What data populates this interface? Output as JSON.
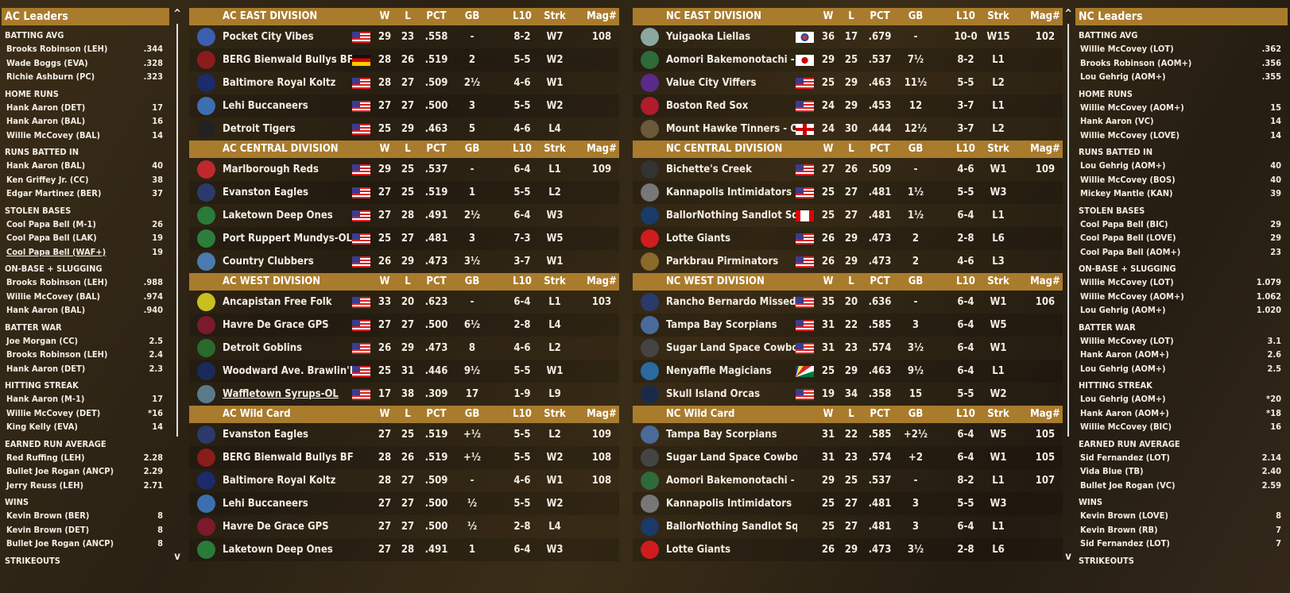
{
  "colors": {
    "header": "#a97b2c",
    "background": "#2a2114"
  },
  "columns": [
    "W",
    "L",
    "PCT",
    "GB",
    "L10",
    "Strk",
    "Mag#"
  ],
  "ac_leaders": {
    "title": "AC Leaders",
    "categories": [
      {
        "name": "BATTING AVG",
        "items": [
          [
            "Brooks Robinson (LEH)",
            ".344"
          ],
          [
            "Wade Boggs (EVA)",
            ".328"
          ],
          [
            "Richie Ashburn (PC)",
            ".323"
          ]
        ]
      },
      {
        "name": "HOME RUNS",
        "items": [
          [
            "Hank Aaron (DET)",
            "17"
          ],
          [
            "Hank Aaron (BAL)",
            "16"
          ],
          [
            "Willie McCovey (BAL)",
            "14"
          ]
        ]
      },
      {
        "name": "RUNS BATTED IN",
        "items": [
          [
            "Hank Aaron (BAL)",
            "40"
          ],
          [
            "Ken Griffey Jr. (CC)",
            "38"
          ],
          [
            "Edgar Martinez (BER)",
            "37"
          ]
        ]
      },
      {
        "name": "STOLEN BASES",
        "items": [
          [
            "Cool Papa Bell (M-1)",
            "26"
          ],
          [
            "Cool Papa Bell (LAK)",
            "19"
          ],
          [
            "Cool Papa Bell (WAF+)",
            "19"
          ]
        ]
      },
      {
        "name": "ON-BASE + SLUGGING",
        "items": [
          [
            "Brooks Robinson (LEH)",
            ".988"
          ],
          [
            "Willie McCovey (BAL)",
            ".974"
          ],
          [
            "Hank Aaron (BAL)",
            ".940"
          ]
        ]
      },
      {
        "name": "BATTER WAR",
        "items": [
          [
            "Joe Morgan (CC)",
            "2.5"
          ],
          [
            "Brooks Robinson (LEH)",
            "2.4"
          ],
          [
            "Hank Aaron (DET)",
            "2.3"
          ]
        ]
      },
      {
        "name": "HITTING STREAK",
        "items": [
          [
            "Hank Aaron (M-1)",
            "17"
          ],
          [
            "Willie McCovey (DET)",
            "*16"
          ],
          [
            "King Kelly (EVA)",
            "14"
          ]
        ]
      },
      {
        "name": "EARNED RUN AVERAGE",
        "items": [
          [
            "Red Ruffing (LEH)",
            "2.28"
          ],
          [
            "Bullet Joe Rogan (ANCP)",
            "2.29"
          ],
          [
            "Jerry Reuss (LEH)",
            "2.71"
          ]
        ]
      },
      {
        "name": "WINS",
        "items": [
          [
            "Kevin Brown (BER)",
            "8"
          ],
          [
            "Kevin Brown (DET)",
            "8"
          ],
          [
            "Bullet Joe Rogan (ANCP)",
            "8"
          ]
        ]
      },
      {
        "name": "STRIKEOUTS",
        "items": []
      }
    ]
  },
  "nc_leaders": {
    "title": "NC Leaders",
    "categories": [
      {
        "name": "BATTING AVG",
        "items": [
          [
            "Willie McCovey (LOT)",
            ".362"
          ],
          [
            "Brooks Robinson (AOM+)",
            ".356"
          ],
          [
            "Lou Gehrig (AOM+)",
            ".355"
          ]
        ]
      },
      {
        "name": "HOME RUNS",
        "items": [
          [
            "Willie McCovey (AOM+)",
            "15"
          ],
          [
            "Hank Aaron (VC)",
            "14"
          ],
          [
            "Willie McCovey (LOVE)",
            "14"
          ]
        ]
      },
      {
        "name": "RUNS BATTED IN",
        "items": [
          [
            "Lou Gehrig (AOM+)",
            "40"
          ],
          [
            "Willie McCovey (BOS)",
            "40"
          ],
          [
            "Mickey Mantle (KAN)",
            "39"
          ]
        ]
      },
      {
        "name": "STOLEN BASES",
        "items": [
          [
            "Cool Papa Bell (BIC)",
            "29"
          ],
          [
            "Cool Papa Bell (LOVE)",
            "29"
          ],
          [
            "Cool Papa Bell (AOM+)",
            "23"
          ]
        ]
      },
      {
        "name": "ON-BASE + SLUGGING",
        "items": [
          [
            "Willie McCovey (LOT)",
            "1.079"
          ],
          [
            "Willie McCovey (AOM+)",
            "1.062"
          ],
          [
            "Lou Gehrig (AOM+)",
            "1.020"
          ]
        ]
      },
      {
        "name": "BATTER WAR",
        "items": [
          [
            "Willie McCovey (LOT)",
            "3.1"
          ],
          [
            "Hank Aaron (AOM+)",
            "2.6"
          ],
          [
            "Lou Gehrig (AOM+)",
            "2.5"
          ]
        ]
      },
      {
        "name": "HITTING STREAK",
        "items": [
          [
            "Lou Gehrig (AOM+)",
            "*20"
          ],
          [
            "Hank Aaron (AOM+)",
            "*18"
          ],
          [
            "Willie McCovey (BIC)",
            "16"
          ]
        ]
      },
      {
        "name": "EARNED RUN AVERAGE",
        "items": [
          [
            "Sid Fernandez (LOT)",
            "2.14"
          ],
          [
            "Vida Blue (TB)",
            "2.40"
          ],
          [
            "Bullet Joe Rogan (VC)",
            "2.59"
          ]
        ]
      },
      {
        "name": "WINS",
        "items": [
          [
            "Kevin Brown (LOVE)",
            "8"
          ],
          [
            "Kevin Brown (RB)",
            "7"
          ],
          [
            "Sid Fernandez (LOT)",
            "7"
          ]
        ]
      },
      {
        "name": "STRIKEOUTS",
        "items": []
      }
    ]
  },
  "ac_divisions": [
    {
      "title": "AC EAST DIVISION",
      "teams": [
        [
          "#3b5fb0",
          "Pocket City Vibes",
          "us",
          "29",
          "23",
          ".558",
          "-",
          "8-2",
          "W7",
          "108"
        ],
        [
          "#8a1c1c",
          "BERG Bienwald Bullys BFF",
          "de",
          "28",
          "26",
          ".519",
          "2",
          "5-5",
          "W2",
          ""
        ],
        [
          "#1c2b6b",
          "Baltimore Royal Koltz",
          "us",
          "28",
          "27",
          ".509",
          "2½",
          "4-6",
          "W1",
          ""
        ],
        [
          "#3b6fb0",
          "Lehi Buccaneers",
          "us",
          "27",
          "27",
          ".500",
          "3",
          "5-5",
          "W2",
          ""
        ],
        [
          "#222",
          "Detroit Tigers",
          "us",
          "25",
          "29",
          ".463",
          "5",
          "4-6",
          "L4",
          ""
        ]
      ]
    },
    {
      "title": "AC CENTRAL DIVISION",
      "teams": [
        [
          "#c0282d",
          "Marlborough Reds",
          "us",
          "29",
          "25",
          ".537",
          "-",
          "6-4",
          "L1",
          "109"
        ],
        [
          "#2b3a6b",
          "Evanston Eagles",
          "us",
          "27",
          "25",
          ".519",
          "1",
          "5-5",
          "L2",
          ""
        ],
        [
          "#2a7a3a",
          "Laketown Deep Ones",
          "us",
          "27",
          "28",
          ".491",
          "2½",
          "6-4",
          "W3",
          ""
        ],
        [
          "#2e7d3a",
          "Port Ruppert Mundys-OL",
          "us",
          "25",
          "27",
          ".481",
          "3",
          "7-3",
          "W5",
          ""
        ],
        [
          "#4a7ab0",
          "Country Clubbers",
          "us",
          "26",
          "29",
          ".473",
          "3½",
          "3-7",
          "W1",
          ""
        ]
      ]
    },
    {
      "title": "AC WEST DIVISION",
      "teams": [
        [
          "#c8c020",
          "Ancapistan Free Folk",
          "us",
          "33",
          "20",
          ".623",
          "-",
          "6-4",
          "L1",
          "103"
        ],
        [
          "#7a1a2a",
          "Havre De Grace GPS",
          "us",
          "27",
          "27",
          ".500",
          "6½",
          "2-8",
          "L4",
          ""
        ],
        [
          "#2a6a2a",
          "Detroit Goblins",
          "us",
          "26",
          "29",
          ".473",
          "8",
          "4-6",
          "L2",
          ""
        ],
        [
          "#1a2a5a",
          "Woodward Ave. Brawlin'Bird",
          "us",
          "25",
          "31",
          ".446",
          "9½",
          "5-5",
          "W1",
          ""
        ],
        [
          "#5a7a8a",
          "Waffletown Syrups-OL",
          "us",
          "17",
          "38",
          ".309",
          "17",
          "1-9",
          "L9",
          "",
          "u"
        ]
      ]
    },
    {
      "title": "AC  Wild Card",
      "teams": [
        [
          "#2b3a6b",
          "Evanston Eagles",
          "",
          "27",
          "25",
          ".519",
          "+½",
          "5-5",
          "L2",
          "109"
        ],
        [
          "#8a1c1c",
          "BERG Bienwald Bullys BFF",
          "",
          "28",
          "26",
          ".519",
          "+½",
          "5-5",
          "W2",
          "108"
        ],
        [
          "#1c2b6b",
          "Baltimore Royal Koltz",
          "",
          "28",
          "27",
          ".509",
          "-",
          "4-6",
          "W1",
          "108"
        ],
        [
          "#3b6fb0",
          "Lehi Buccaneers",
          "",
          "27",
          "27",
          ".500",
          "½",
          "5-5",
          "W2",
          ""
        ],
        [
          "#7a1a2a",
          "Havre De Grace GPS",
          "",
          "27",
          "27",
          ".500",
          "½",
          "2-8",
          "L4",
          ""
        ],
        [
          "#2a7a3a",
          "Laketown Deep Ones",
          "",
          "27",
          "28",
          ".491",
          "1",
          "6-4",
          "W3",
          ""
        ]
      ]
    }
  ],
  "nc_divisions": [
    {
      "title": "NC EAST DIVISION",
      "teams": [
        [
          "#8aa8a0",
          "Yuigaoka Liellas",
          "kr",
          "36",
          "17",
          ".679",
          "-",
          "10-0",
          "W15",
          "102"
        ],
        [
          "#2e6a3a",
          "Aomori Bakemonotachi - OL",
          "jp",
          "29",
          "25",
          ".537",
          "7½",
          "8-2",
          "L1",
          ""
        ],
        [
          "#5a2a8a",
          "Value City Viffers",
          "us",
          "25",
          "29",
          ".463",
          "11½",
          "5-5",
          "L2",
          ""
        ],
        [
          "#b01c2c",
          "Boston Red Sox",
          "us",
          "24",
          "29",
          ".453",
          "12",
          "3-7",
          "L1",
          ""
        ],
        [
          "#6a5a3a",
          "Mount Hawke Tinners - OL",
          "en",
          "24",
          "30",
          ".444",
          "12½",
          "3-7",
          "L2",
          ""
        ]
      ]
    },
    {
      "title": "NC CENTRAL DIVISION",
      "teams": [
        [
          "#333",
          "Bichette's Creek",
          "us",
          "27",
          "26",
          ".509",
          "-",
          "4-6",
          "W1",
          "109"
        ],
        [
          "#777",
          "Kannapolis Intimidators",
          "us",
          "25",
          "27",
          ".481",
          "1½",
          "5-5",
          "W3",
          ""
        ],
        [
          "#1a3a6a",
          "BallorNothing Sandlot Squad",
          "ca",
          "25",
          "27",
          ".481",
          "1½",
          "6-4",
          "L1",
          ""
        ],
        [
          "#d01c1c",
          "Lotte Giants",
          "us",
          "26",
          "29",
          ".473",
          "2",
          "2-8",
          "L6",
          ""
        ],
        [
          "#8a6a2a",
          "Parkbrau Pirminators",
          "us",
          "26",
          "29",
          ".473",
          "2",
          "4-6",
          "L3",
          ""
        ]
      ]
    },
    {
      "title": "NC WEST DIVISION",
      "teams": [
        [
          "#2a3a6a",
          "Rancho Bernardo Missed Si",
          "us",
          "35",
          "20",
          ".636",
          "-",
          "6-4",
          "W1",
          "106"
        ],
        [
          "#4a6a9a",
          "Tampa Bay Scorpians",
          "us",
          "31",
          "22",
          ".585",
          "3",
          "6-4",
          "W5",
          ""
        ],
        [
          "#444",
          "Sugar Land Space Cowboys",
          "us",
          "31",
          "23",
          ".574",
          "3½",
          "6-4",
          "W1",
          ""
        ],
        [
          "#2a6aa0",
          "Nenyaffle Magicians",
          "sc",
          "25",
          "29",
          ".463",
          "9½",
          "6-4",
          "L1",
          ""
        ],
        [
          "#1a2a4a",
          "Skull Island Orcas",
          "us",
          "19",
          "34",
          ".358",
          "15",
          "5-5",
          "W2",
          ""
        ]
      ]
    },
    {
      "title": "NC  Wild Card",
      "teams": [
        [
          "#4a6a9a",
          "Tampa Bay Scorpians",
          "",
          "31",
          "22",
          ".585",
          "+2½",
          "6-4",
          "W5",
          "105"
        ],
        [
          "#444",
          "Sugar Land Space Cowboys",
          "",
          "31",
          "23",
          ".574",
          "+2",
          "6-4",
          "W1",
          "105"
        ],
        [
          "#2e6a3a",
          "Aomori Bakemonotachi - OL",
          "",
          "29",
          "25",
          ".537",
          "-",
          "8-2",
          "L1",
          "107"
        ],
        [
          "#777",
          "Kannapolis Intimidators",
          "",
          "25",
          "27",
          ".481",
          "3",
          "5-5",
          "W3",
          ""
        ],
        [
          "#1a3a6a",
          "BallorNothing Sandlot Squad",
          "",
          "25",
          "27",
          ".481",
          "3",
          "6-4",
          "L1",
          ""
        ],
        [
          "#d01c1c",
          "Lotte Giants",
          "",
          "26",
          "29",
          ".473",
          "3½",
          "2-8",
          "L6",
          ""
        ]
      ]
    }
  ],
  "scroll": {
    "up": "^",
    "down": "v"
  }
}
